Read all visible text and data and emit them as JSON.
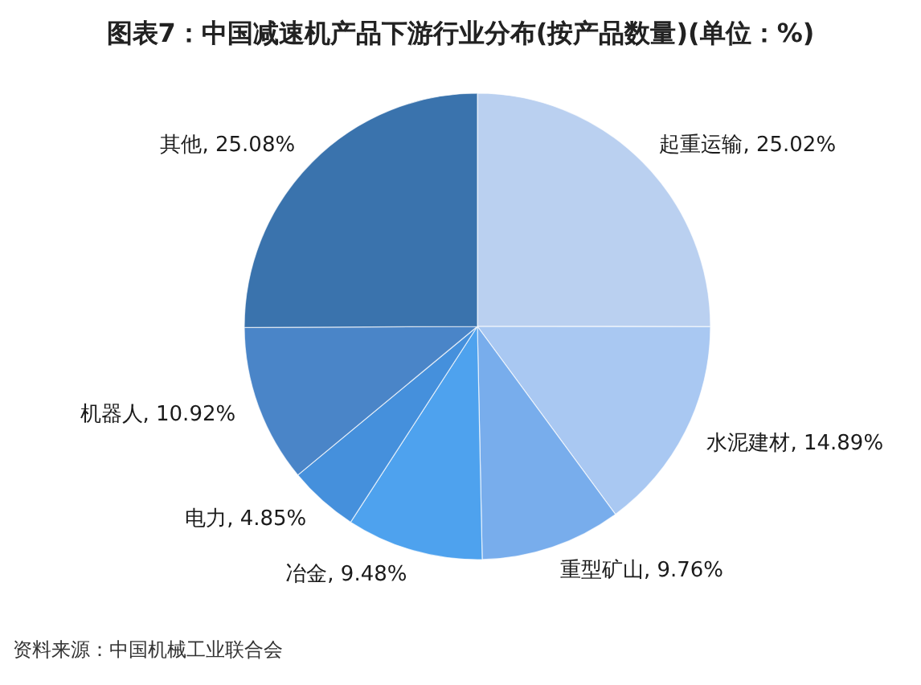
{
  "chart_data": {
    "type": "pie",
    "title": "图表7：中国减速机产品下游行业分布(按产品数量)(单位：%)",
    "categories": [
      "起重运输",
      "水泥建材",
      "重型矿山",
      "冶金",
      "电力",
      "机器人",
      "其他"
    ],
    "values": [
      25.02,
      14.89,
      9.76,
      9.48,
      4.85,
      10.92,
      25.08
    ],
    "colors": [
      "#bad0f0",
      "#a9c8f2",
      "#78adec",
      "#4ea2ee",
      "#4590dc",
      "#4a85c8",
      "#3a73ad"
    ],
    "value_labels": [
      "25.02%",
      "14.89%",
      "9.76%",
      "9.48%",
      "4.85%",
      "10.92%",
      "25.08%"
    ],
    "annotations": [
      "资料来源：中国机械工业联合会"
    ]
  }
}
